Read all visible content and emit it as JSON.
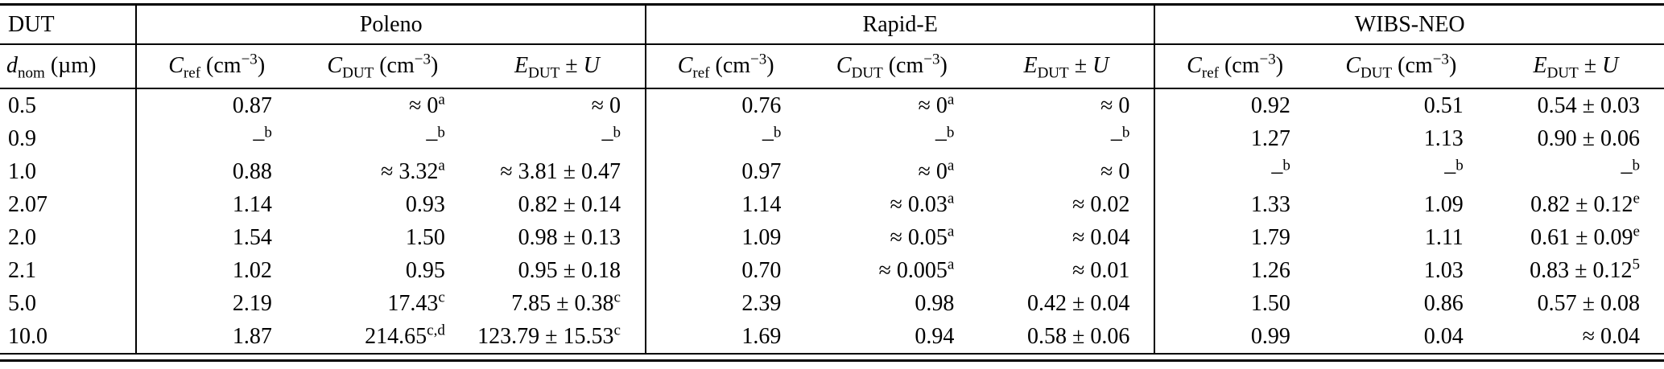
{
  "table": {
    "groups": [
      {
        "label": "DUT"
      },
      {
        "label": "Poleno"
      },
      {
        "label": "Rapid-E"
      },
      {
        "label": "WIBS-NEO"
      }
    ],
    "col_headers": [
      "*d*_{nom} (µm)",
      "*C*_{ref} (cm^{−3})",
      "*C*_{DUT} (cm^{−3})",
      "*E*_{DUT} ± *U*",
      "*C*_{ref} (cm^{−3})",
      "*C*_{DUT} (cm^{−3})",
      "*E*_{DUT} ± *U*",
      "*C*_{ref} (cm^{−3})",
      "*C*_{DUT} (cm^{−3})",
      "*E*_{DUT} ± *U*"
    ],
    "rows": [
      [
        "0.5",
        "0.87",
        "≈ 0^{a}",
        "≈ 0",
        "0.76",
        "≈ 0^{a}",
        "≈ 0",
        "0.92",
        "0.51",
        "0.54 ± 0.03"
      ],
      [
        "0.9",
        "–^{b}",
        "–^{b}",
        "–^{b}",
        "–^{b}",
        "–^{b}",
        "–^{b}",
        "1.27",
        "1.13",
        "0.90 ± 0.06"
      ],
      [
        "1.0",
        "0.88",
        "≈ 3.32^{a}",
        "≈ 3.81 ± 0.47",
        "0.97",
        "≈ 0^{a}",
        "≈ 0",
        "–^{b}",
        "–^{b}",
        "–^{b}"
      ],
      [
        "2.07",
        "1.14",
        "0.93",
        "0.82 ± 0.14",
        "1.14",
        "≈ 0.03^{a}",
        "≈ 0.02",
        "1.33",
        "1.09",
        "0.82 ± 0.12^{e}"
      ],
      [
        "2.0",
        "1.54",
        "1.50",
        "0.98 ± 0.13",
        "1.09",
        "≈ 0.05^{a}",
        "≈ 0.04",
        "1.79",
        "1.11",
        "0.61 ± 0.09^{e}"
      ],
      [
        "2.1",
        "1.02",
        "0.95",
        "0.95 ± 0.18",
        "0.70",
        "≈ 0.005^{a}",
        "≈ 0.01",
        "1.26",
        "1.03",
        "0.83 ± 0.12^{5}"
      ],
      [
        "5.0",
        "2.19",
        "17.43^{c}",
        "7.85 ± 0.38^{c}",
        "2.39",
        "0.98",
        "0.42 ± 0.04",
        "1.50",
        "0.86",
        "0.57 ± 0.08"
      ],
      [
        "10.0",
        "1.87",
        "214.65^{c,d}",
        "123.79 ± 15.53^{c}",
        "1.69",
        "0.94",
        "0.58 ± 0.06",
        "0.99",
        "0.04",
        "≈ 0.04"
      ]
    ]
  }
}
